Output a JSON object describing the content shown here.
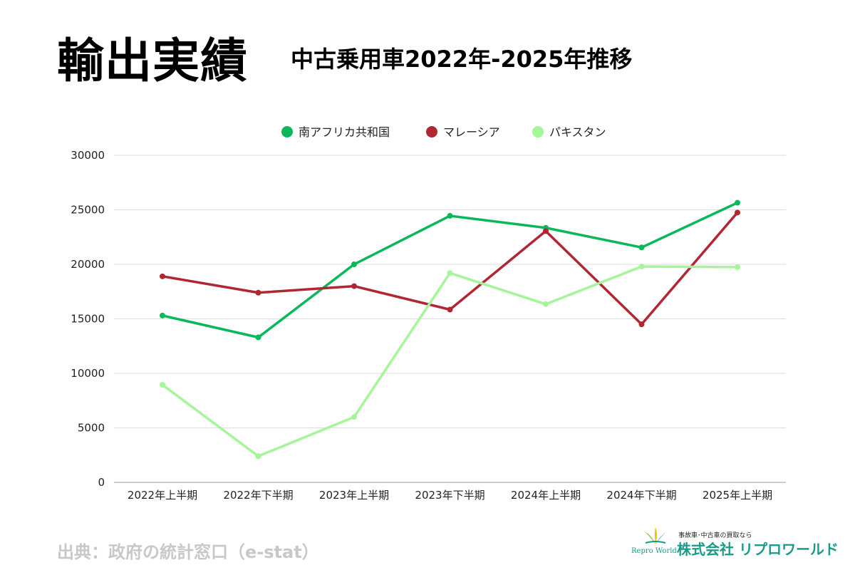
{
  "header": {
    "title": "輸出実績",
    "subtitle": "中古乗用車2022年-2025年推移"
  },
  "footer": {
    "source": "出典：政府の統計窓口（e-stat）"
  },
  "logo": {
    "tagline": "事故車･中古車の買取なら",
    "company": "株式会社 リプロワールド",
    "brand": "Repro World"
  },
  "chart_data": {
    "type": "line",
    "title": "",
    "xlabel": "",
    "ylabel": "",
    "categories": [
      "2022年上半期",
      "2022年下半期",
      "2023年上半期",
      "2023年下半期",
      "2024年上半期",
      "2024年下半期",
      "2025年上半期"
    ],
    "ylim": [
      0,
      30000
    ],
    "yticks": [
      0,
      5000,
      10000,
      15000,
      20000,
      25000,
      30000
    ],
    "grid": true,
    "legend_position": "top-center",
    "series": [
      {
        "name": "南アフリカ共和国",
        "color": "#0ab85a",
        "values": [
          15300,
          13300,
          20000,
          24450,
          23350,
          21550,
          25650
        ]
      },
      {
        "name": "マレーシア",
        "color": "#b02733",
        "values": [
          18900,
          17400,
          18000,
          15850,
          23050,
          14500,
          24750
        ]
      },
      {
        "name": "パキスタン",
        "color": "#a6f59a",
        "values": [
          8950,
          2400,
          6000,
          19200,
          16350,
          19800,
          19750
        ]
      }
    ]
  }
}
